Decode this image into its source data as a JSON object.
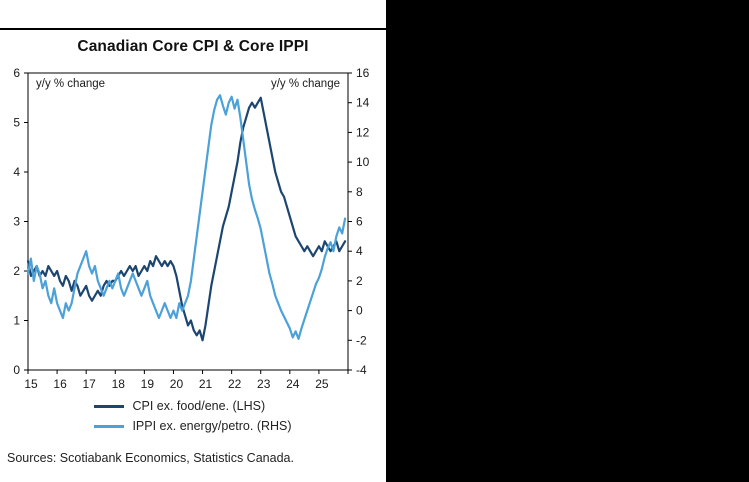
{
  "window": {
    "background": "#000000",
    "panel_background": "#ffffff"
  },
  "chart": {
    "title": "Canadian Core CPI & Core IPPI",
    "left_axis_note": "y/y % change",
    "right_axis_note": "y/y % change",
    "sources": "Sources: Scotiabank Economics, Statistics Canada."
  },
  "chart_data": {
    "type": "line",
    "title": "Canadian Core CPI & Core IPPI",
    "x_start": 2015.0,
    "x_step": 0.1,
    "x_range": [
      2015,
      2026
    ],
    "x_tick_labels": [
      "15",
      "16",
      "17",
      "18",
      "19",
      "20",
      "21",
      "22",
      "23",
      "24",
      "25"
    ],
    "left_axis": {
      "min": 0,
      "max": 6,
      "step": 1,
      "label": "y/y % change"
    },
    "right_axis": {
      "min": -4,
      "max": 16,
      "step": 2,
      "label": "y/y % change"
    },
    "grid": false,
    "legend_position": "bottom",
    "series": [
      {
        "name": "CPI ex. food/ene. (LHS)",
        "axis": "left",
        "color": "#1c4670",
        "values": [
          2.2,
          1.9,
          2.0,
          2.1,
          1.9,
          2.0,
          1.9,
          2.1,
          2.0,
          1.9,
          2.0,
          1.8,
          1.7,
          1.9,
          1.8,
          1.6,
          1.8,
          1.7,
          1.5,
          1.6,
          1.7,
          1.5,
          1.4,
          1.5,
          1.6,
          1.5,
          1.7,
          1.8,
          1.7,
          1.8,
          1.8,
          1.9,
          2.0,
          1.9,
          2.0,
          2.1,
          2.0,
          2.1,
          1.9,
          2.0,
          2.1,
          2.0,
          2.2,
          2.1,
          2.3,
          2.2,
          2.1,
          2.2,
          2.1,
          2.2,
          2.1,
          1.9,
          1.6,
          1.3,
          1.1,
          0.9,
          1.0,
          0.8,
          0.7,
          0.8,
          0.6,
          0.9,
          1.3,
          1.7,
          2.0,
          2.3,
          2.6,
          2.9,
          3.1,
          3.3,
          3.6,
          3.9,
          4.2,
          4.6,
          4.9,
          5.1,
          5.3,
          5.4,
          5.3,
          5.4,
          5.5,
          5.2,
          4.9,
          4.6,
          4.3,
          4.0,
          3.8,
          3.6,
          3.5,
          3.3,
          3.1,
          2.9,
          2.7,
          2.6,
          2.5,
          2.4,
          2.5,
          2.4,
          2.3,
          2.4,
          2.5,
          2.4,
          2.6,
          2.5,
          2.4,
          2.5,
          2.6,
          2.4,
          2.5,
          2.6
        ]
      },
      {
        "name": "IPPI ex. energy/petro. (RHS)",
        "axis": "right",
        "color": "#4ca1d8",
        "values": [
          2.5,
          3.5,
          2.0,
          3.0,
          2.5,
          1.5,
          2.0,
          1.0,
          0.5,
          1.5,
          0.5,
          0.0,
          -0.5,
          0.5,
          0.0,
          0.5,
          1.5,
          2.5,
          3.0,
          3.5,
          4.0,
          3.0,
          2.5,
          3.0,
          2.0,
          1.5,
          1.0,
          1.5,
          2.0,
          1.5,
          2.0,
          2.5,
          1.5,
          1.0,
          1.5,
          2.0,
          2.5,
          2.0,
          1.5,
          1.0,
          1.5,
          2.0,
          1.0,
          0.5,
          0.0,
          -0.5,
          0.0,
          0.5,
          0.0,
          -0.5,
          0.0,
          -0.5,
          0.5,
          0.0,
          0.5,
          1.0,
          2.0,
          3.5,
          5.0,
          6.5,
          8.0,
          9.5,
          11.0,
          12.5,
          13.5,
          14.2,
          14.5,
          13.8,
          13.2,
          14.0,
          14.4,
          13.6,
          14.2,
          13.0,
          11.5,
          10.0,
          8.5,
          7.5,
          6.8,
          6.2,
          5.5,
          4.5,
          3.5,
          2.5,
          1.8,
          1.0,
          0.5,
          0.0,
          -0.4,
          -0.8,
          -1.2,
          -1.8,
          -1.4,
          -1.9,
          -1.2,
          -0.6,
          0.0,
          0.6,
          1.2,
          1.8,
          2.2,
          2.8,
          3.6,
          4.2,
          4.6,
          4.0,
          5.0,
          5.6,
          5.2,
          6.2
        ]
      }
    ]
  }
}
